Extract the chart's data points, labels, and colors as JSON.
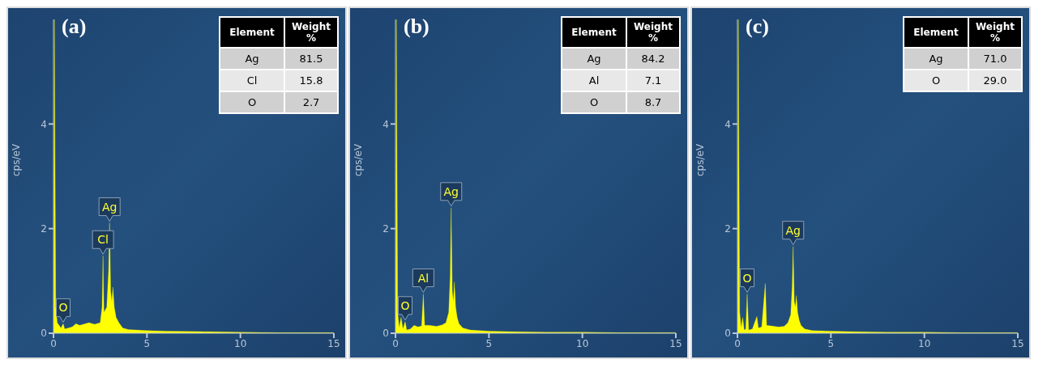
{
  "chart_data": [
    {
      "type": "area",
      "title": "(a)",
      "ylabel": "cps/eV",
      "color": "#ffff00",
      "xlim": [
        0,
        15
      ],
      "xticks": [
        0,
        5,
        10,
        15
      ],
      "ylim": [
        0,
        6
      ],
      "yticks": [
        0,
        2,
        4
      ],
      "grid": false,
      "legend": false,
      "x": [
        0,
        0.05,
        0.12,
        0.2,
        0.3,
        0.4,
        0.52,
        0.6,
        0.8,
        1.0,
        1.2,
        1.4,
        1.7,
        1.9,
        2.2,
        2.5,
        2.6,
        2.65,
        2.7,
        2.85,
        2.95,
        3.0,
        3.06,
        3.12,
        3.18,
        3.25,
        3.35,
        3.5,
        3.7,
        4.0,
        5,
        6,
        8,
        10,
        12,
        15
      ],
      "values": [
        0,
        6,
        0.5,
        0.2,
        0.15,
        0.1,
        0.18,
        0.08,
        0.1,
        0.12,
        0.18,
        0.15,
        0.18,
        0.2,
        0.17,
        0.2,
        0.5,
        1.48,
        0.4,
        0.5,
        1.2,
        2.11,
        0.8,
        0.6,
        0.88,
        0.5,
        0.3,
        0.2,
        0.1,
        0.07,
        0.05,
        0.04,
        0.03,
        0.02,
        0.01,
        0.01
      ],
      "annotations": [
        {
          "text": "O",
          "x": 0.52,
          "y": 0.18
        },
        {
          "text": "Cl",
          "x": 2.65,
          "y": 1.48
        },
        {
          "text": "Ag",
          "x": 3.0,
          "y": 2.11
        },
        "Element",
        "Weight %",
        "Ag",
        "81.5",
        "Cl",
        "15.8",
        "O",
        "2.7"
      ]
    },
    {
      "type": "area",
      "title": "(b)",
      "ylabel": "cps/eV",
      "color": "#ffff00",
      "xlim": [
        0,
        15
      ],
      "xticks": [
        0,
        5,
        10,
        15
      ],
      "ylim": [
        0,
        6
      ],
      "yticks": [
        0,
        2,
        4
      ],
      "grid": false,
      "legend": false,
      "x": [
        0,
        0.05,
        0.12,
        0.2,
        0.3,
        0.4,
        0.52,
        0.6,
        0.8,
        1.0,
        1.2,
        1.4,
        1.49,
        1.56,
        1.8,
        2.2,
        2.5,
        2.7,
        2.85,
        2.93,
        2.98,
        3.04,
        3.1,
        3.15,
        3.22,
        3.3,
        3.4,
        3.6,
        4.0,
        5,
        6,
        8,
        10,
        12,
        15
      ],
      "values": [
        0,
        6,
        0.4,
        0.1,
        0.3,
        0.08,
        0.22,
        0.06,
        0.08,
        0.15,
        0.12,
        0.14,
        0.75,
        0.15,
        0.15,
        0.13,
        0.16,
        0.2,
        0.4,
        1.1,
        2.4,
        0.8,
        0.6,
        0.98,
        0.5,
        0.3,
        0.18,
        0.1,
        0.06,
        0.04,
        0.03,
        0.02,
        0.02,
        0.01,
        0.01
      ],
      "annotations": [
        {
          "text": "O",
          "x": 0.52,
          "y": 0.22
        },
        {
          "text": "Al",
          "x": 1.49,
          "y": 0.75
        },
        {
          "text": "Ag",
          "x": 2.98,
          "y": 2.4
        },
        "Element",
        "Weight %",
        "Ag",
        "84.2",
        "Al",
        "7.1",
        "O",
        "8.7"
      ]
    },
    {
      "type": "area",
      "title": "(c)",
      "ylabel": "cps/eV",
      "color": "#ffff00",
      "xlim": [
        0,
        15
      ],
      "xticks": [
        0,
        5,
        10,
        15
      ],
      "ylim": [
        0,
        6
      ],
      "yticks": [
        0,
        2,
        4
      ],
      "grid": false,
      "legend": false,
      "x": [
        0,
        0.05,
        0.12,
        0.2,
        0.28,
        0.36,
        0.45,
        0.52,
        0.6,
        0.8,
        1.04,
        1.12,
        1.3,
        1.49,
        1.56,
        1.8,
        2.2,
        2.5,
        2.7,
        2.85,
        2.93,
        2.98,
        3.04,
        3.1,
        3.15,
        3.22,
        3.3,
        3.4,
        3.6,
        4.0,
        5,
        6,
        8,
        10,
        12,
        15
      ],
      "values": [
        0,
        6,
        0.4,
        0.1,
        0.3,
        0.06,
        0.08,
        0.75,
        0.06,
        0.08,
        0.32,
        0.1,
        0.12,
        0.95,
        0.15,
        0.14,
        0.12,
        0.13,
        0.2,
        0.35,
        0.9,
        1.66,
        0.6,
        0.5,
        0.72,
        0.4,
        0.25,
        0.15,
        0.08,
        0.05,
        0.04,
        0.03,
        0.02,
        0.02,
        0.01,
        0.01
      ],
      "annotations": [
        {
          "text": "O",
          "x": 0.52,
          "y": 0.75
        },
        {
          "text": "Ag",
          "x": 2.98,
          "y": 1.66
        },
        "Element",
        "Weight %",
        "Ag",
        "71.0",
        "O",
        "29.0"
      ]
    }
  ]
}
